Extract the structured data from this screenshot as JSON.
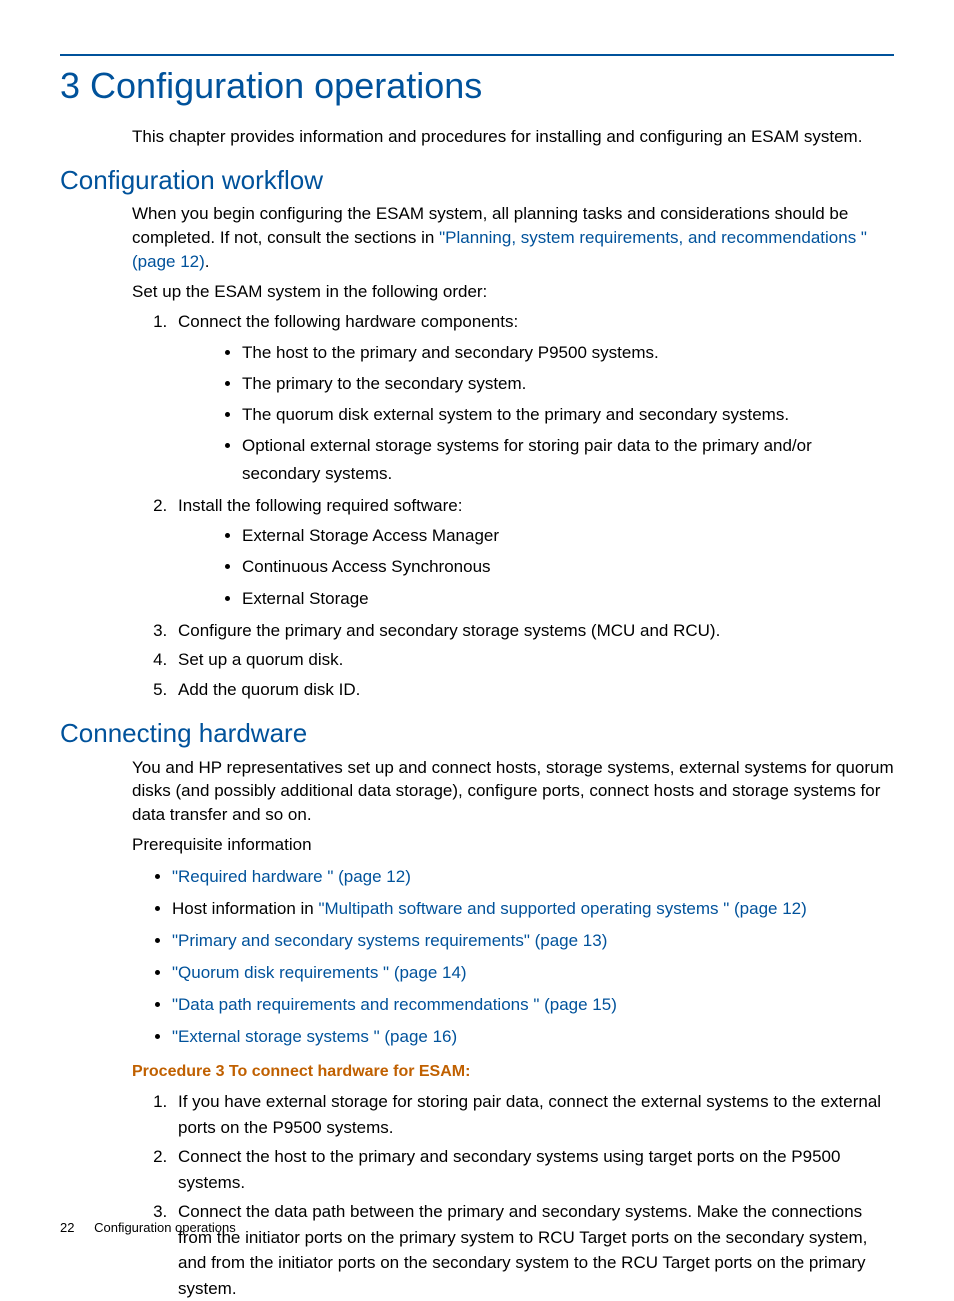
{
  "colors": {
    "brand": "#00529b",
    "procedure": "#c06000",
    "text": "#000000",
    "background": "#ffffff"
  },
  "chapter": {
    "title": "3 Configuration operations",
    "intro": "This chapter provides information and procedures for installing and configuring an ESAM system."
  },
  "workflow": {
    "heading": "Configuration workflow",
    "p1a": "When you begin configuring the ESAM system, all planning tasks and considerations should be completed. If not, consult the sections in ",
    "p1_link": "\"Planning, system requirements, and recommendations \" (page 12)",
    "p1b": ".",
    "p2": "Set up the ESAM system in the following order:",
    "step1": "Connect the following hardware components:",
    "step1_bullets": [
      "The host to the primary and secondary P9500 systems.",
      "The primary to the secondary system.",
      "The quorum disk external system to the primary and secondary systems.",
      "Optional external storage systems for storing pair data to the primary and/or secondary systems."
    ],
    "step2": "Install the following required software:",
    "step2_bullets": [
      "External Storage Access Manager",
      "Continuous Access Synchronous",
      "External Storage"
    ],
    "step3": "Configure the primary and secondary storage systems (MCU and RCU).",
    "step4": "Set up a quorum disk.",
    "step5": "Add the quorum disk ID."
  },
  "connecting": {
    "heading": "Connecting hardware",
    "p1": "You and HP representatives set up and connect hosts, storage systems, external systems for quorum disks (and possibly additional data storage), configure ports, connect hosts and storage systems for data transfer and so on.",
    "p2": "Prerequisite information",
    "links": {
      "l1": "\"Required hardware \" (page 12)",
      "l2_pre": "Host information in ",
      "l2": "\"Multipath software and supported operating systems \" (page 12)",
      "l3": "\"Primary and secondary systems requirements\" (page 13)",
      "l4": "\"Quorum disk requirements \" (page 14)",
      "l5": "\"Data path requirements and recommendations \" (page 15)",
      "l6": "\"External storage systems \" (page 16)"
    },
    "procedure_title": "Procedure 3 To connect hardware for ESAM:",
    "proc_steps": [
      "If you have external storage for storing pair data, connect the external systems to the external ports on the P9500 systems.",
      "Connect the host to the primary and secondary systems using target ports on the P9500 systems.",
      "Connect the data path between the primary and secondary systems. Make the connections from the initiator ports on the primary system to RCU Target ports on the secondary system, and from the initiator ports on the secondary system to the RCU Target ports on the primary system."
    ]
  },
  "footer": {
    "page_number": "22",
    "running_title": "Configuration operations"
  }
}
